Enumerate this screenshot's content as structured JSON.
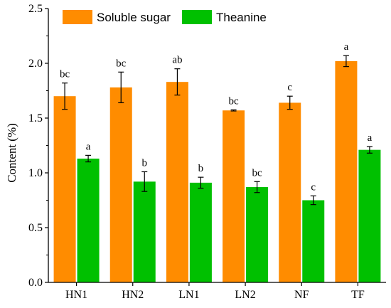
{
  "chart_data": {
    "type": "bar",
    "title": "",
    "xlabel": "",
    "ylabel": "Content (%)",
    "ylim": [
      0,
      2.5
    ],
    "yticks": [
      "0.0",
      "0.5",
      "1.0",
      "1.5",
      "2.0",
      "2.5"
    ],
    "categories": [
      "HN1",
      "HN2",
      "LN1",
      "LN2",
      "NF",
      "TF"
    ],
    "legend_position": "top-left",
    "series": [
      {
        "name": "Soluble sugar",
        "color": "#FF8C00",
        "values": [
          1.7,
          1.78,
          1.83,
          1.57,
          1.64,
          2.02
        ],
        "errors": [
          0.12,
          0.14,
          0.12,
          0.005,
          0.06,
          0.05
        ],
        "letters": [
          "bc",
          "bc",
          "ab",
          "bc",
          "c",
          "a"
        ]
      },
      {
        "name": "Theanine",
        "color": "#00C000",
        "values": [
          1.13,
          0.92,
          0.91,
          0.87,
          0.75,
          1.21
        ],
        "errors": [
          0.03,
          0.09,
          0.05,
          0.05,
          0.04,
          0.03
        ],
        "letters": [
          "a",
          "b",
          "b",
          "bc",
          "c",
          "a"
        ]
      }
    ]
  }
}
